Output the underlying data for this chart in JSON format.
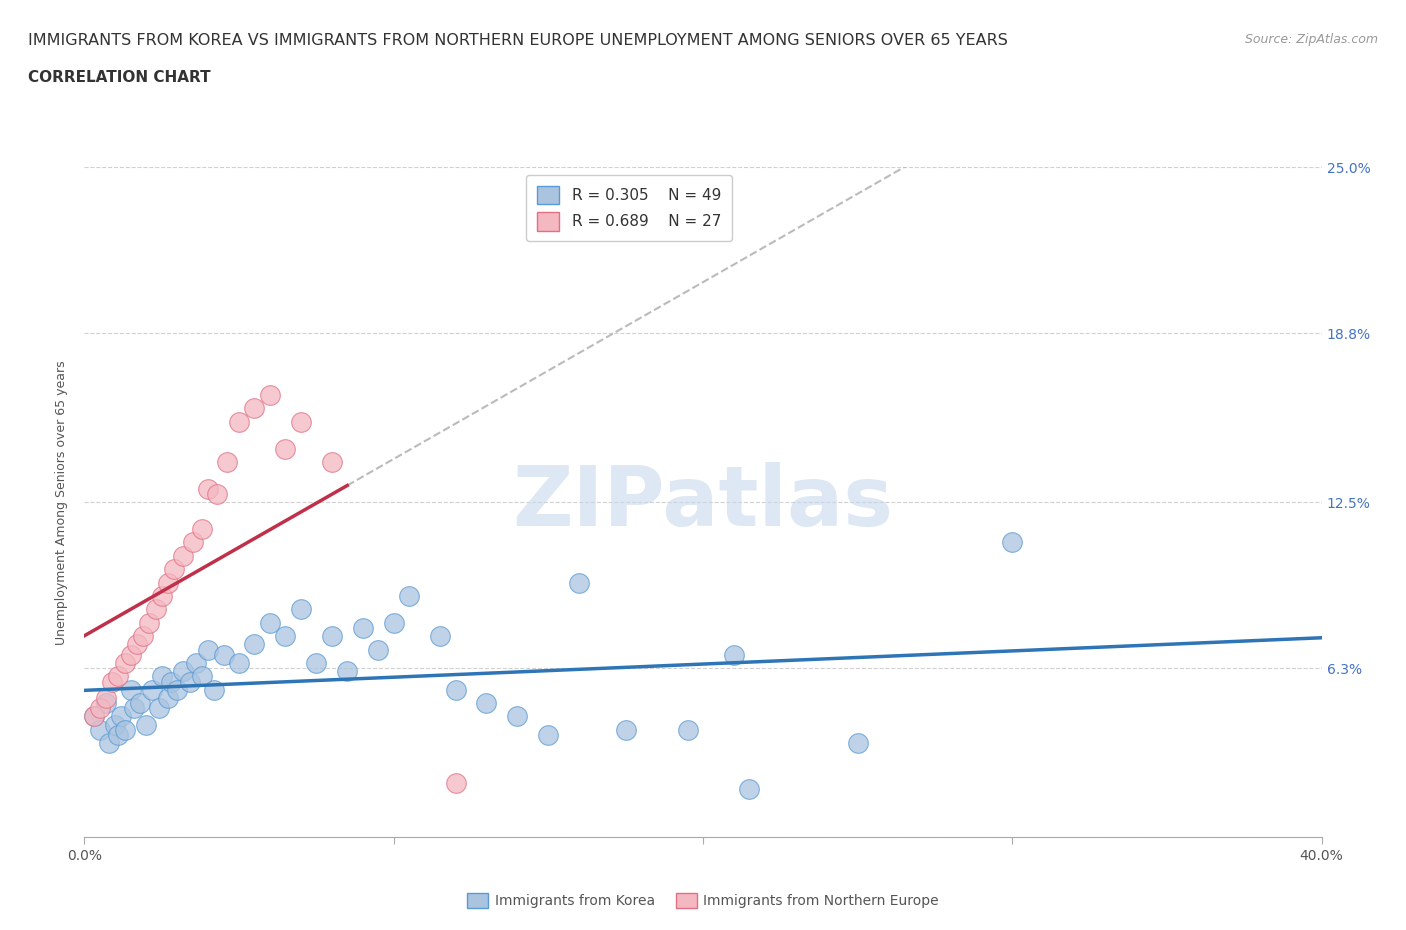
{
  "title_line1": "IMMIGRANTS FROM KOREA VS IMMIGRANTS FROM NORTHERN EUROPE UNEMPLOYMENT AMONG SENIORS OVER 65 YEARS",
  "title_line2": "CORRELATION CHART",
  "source_text": "Source: ZipAtlas.com",
  "ylabel": "Unemployment Among Seniors over 65 years",
  "xlim": [
    0.0,
    0.4
  ],
  "ylim": [
    -0.01,
    0.26
  ],
  "plot_ylim": [
    0.0,
    0.25
  ],
  "xticks": [
    0.0,
    0.1,
    0.2,
    0.3,
    0.4
  ],
  "xticklabels": [
    "0.0%",
    "",
    "",
    "",
    "40.0%"
  ],
  "yticks": [
    0.0,
    0.063,
    0.125,
    0.188,
    0.25
  ],
  "yticklabels": [
    "",
    "6.3%",
    "12.5%",
    "18.8%",
    "25.0%"
  ],
  "korea_R": 0.305,
  "korea_N": 49,
  "northern_europe_R": 0.689,
  "northern_europe_N": 27,
  "korea_color": "#aac4e0",
  "korea_edge_color": "#5b9bd5",
  "korea_line_color": "#2E75B6",
  "northern_europe_color": "#f4b8c1",
  "northern_europe_edge_color": "#e07085",
  "northern_europe_line_color": "#c0304a",
  "dashed_line_color": "#bbbbbb",
  "watermark": "ZIPatlas",
  "background_color": "#ffffff",
  "grid_color": "#cccccc",
  "korea_scatter_x": [
    0.003,
    0.005,
    0.007,
    0.008,
    0.01,
    0.011,
    0.012,
    0.013,
    0.015,
    0.016,
    0.018,
    0.02,
    0.022,
    0.024,
    0.025,
    0.027,
    0.028,
    0.03,
    0.032,
    0.034,
    0.036,
    0.038,
    0.04,
    0.042,
    0.045,
    0.05,
    0.055,
    0.06,
    0.065,
    0.07,
    0.075,
    0.08,
    0.085,
    0.09,
    0.095,
    0.1,
    0.105,
    0.115,
    0.12,
    0.13,
    0.14,
    0.15,
    0.16,
    0.175,
    0.195,
    0.21,
    0.25,
    0.3,
    0.215
  ],
  "korea_scatter_y": [
    0.045,
    0.04,
    0.05,
    0.035,
    0.042,
    0.038,
    0.045,
    0.04,
    0.055,
    0.048,
    0.05,
    0.042,
    0.055,
    0.048,
    0.06,
    0.052,
    0.058,
    0.055,
    0.062,
    0.058,
    0.065,
    0.06,
    0.07,
    0.055,
    0.068,
    0.065,
    0.072,
    0.08,
    0.075,
    0.085,
    0.065,
    0.075,
    0.062,
    0.078,
    0.07,
    0.08,
    0.09,
    0.075,
    0.055,
    0.05,
    0.045,
    0.038,
    0.095,
    0.04,
    0.04,
    0.068,
    0.035,
    0.11,
    0.018
  ],
  "northern_scatter_x": [
    0.003,
    0.005,
    0.007,
    0.009,
    0.011,
    0.013,
    0.015,
    0.017,
    0.019,
    0.021,
    0.023,
    0.025,
    0.027,
    0.029,
    0.032,
    0.035,
    0.038,
    0.04,
    0.043,
    0.046,
    0.05,
    0.055,
    0.06,
    0.065,
    0.07,
    0.08,
    0.12
  ],
  "northern_scatter_y": [
    0.045,
    0.048,
    0.052,
    0.058,
    0.06,
    0.065,
    0.068,
    0.072,
    0.075,
    0.08,
    0.085,
    0.09,
    0.095,
    0.1,
    0.105,
    0.11,
    0.115,
    0.13,
    0.128,
    0.14,
    0.155,
    0.16,
    0.165,
    0.145,
    0.155,
    0.14,
    0.02
  ],
  "ne_line_solid_end": 0.085,
  "ne_line_dashed_end": 0.4,
  "title_fontsize": 11.5,
  "subtitle_fontsize": 11,
  "axis_label_fontsize": 9,
  "tick_fontsize": 10,
  "source_fontsize": 9
}
